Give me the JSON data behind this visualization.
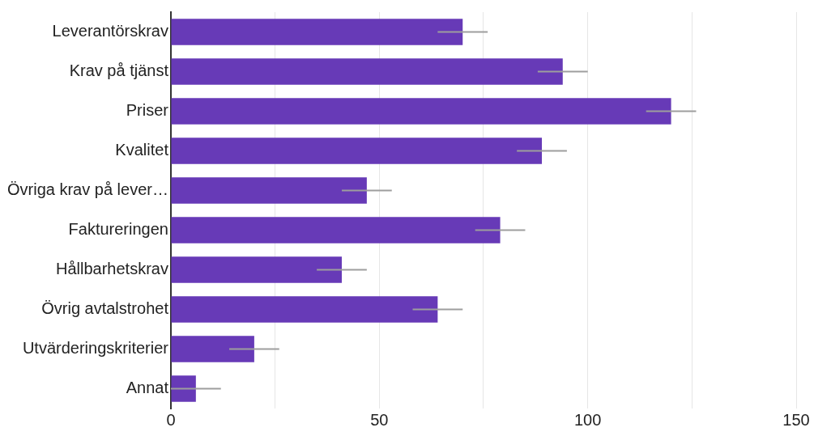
{
  "chart_data": {
    "type": "bar",
    "orientation": "horizontal",
    "categories": [
      "Leverantörskrav",
      "Krav på tjänst",
      "Priser",
      "Kvalitet",
      "Övriga krav på lever…",
      "Faktureringen",
      "Hållbarhetskrav",
      "Övrig avtalstrohet",
      "Utvärderingskriterier",
      "Annat"
    ],
    "values": [
      70,
      94,
      120,
      89,
      47,
      79,
      41,
      64,
      20,
      6
    ],
    "errors": [
      6,
      6,
      6,
      6,
      6,
      6,
      6,
      6,
      6,
      6
    ],
    "color": "#673ab7",
    "xlim": [
      0,
      150
    ],
    "xticks": [
      0,
      {
        "value": 25,
        "label": null
      },
      50,
      {
        "value": 75,
        "label": null
      },
      100,
      {
        "value": 125,
        "label": null
      },
      150
    ],
    "grid": "x",
    "legend": false
  }
}
